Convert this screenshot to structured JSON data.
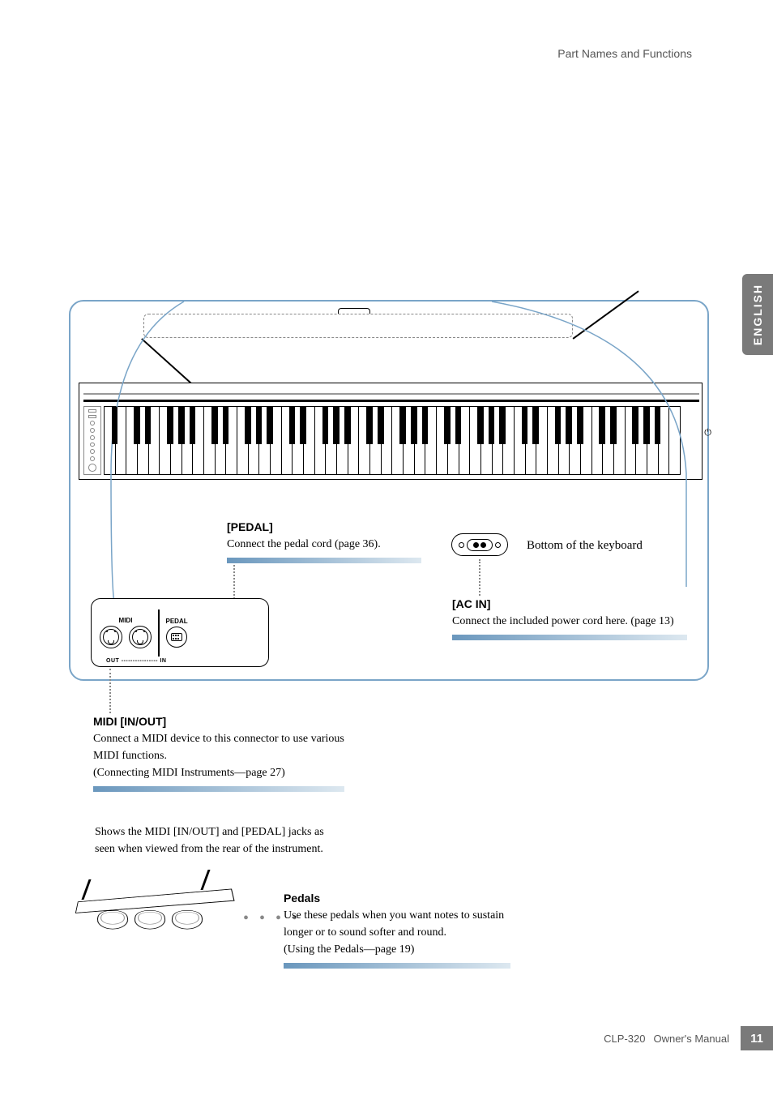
{
  "header": {
    "title": "Part Names and Functions"
  },
  "lang_tab": "ENGLISH",
  "callouts": {
    "pedal": {
      "title": "[PEDAL]",
      "text": "Connect the pedal cord (page 36)."
    },
    "ac_in": {
      "title": "[AC IN]",
      "text": "Connect the included power cord here. (page 13)"
    },
    "bottom_label": "Bottom of the keyboard",
    "midi": {
      "title": "MIDI [IN/OUT]",
      "line1": "Connect a MIDI device to this connector to use various MIDI functions.",
      "line2": "(Connecting MIDI Instruments—page 27)"
    },
    "jacks_note": "Shows the MIDI [IN/OUT] and [PEDAL] jacks as seen when viewed from the rear of the instrument.",
    "pedals": {
      "title": "Pedals",
      "line1": "Use these pedals when you want notes to sustain longer or to sound softer and round.",
      "line2": "(Using the Pedals—page 19)"
    }
  },
  "jacks": {
    "midi_label": "MIDI",
    "pedal_label": "PEDAL",
    "bottom": "OUT ---------------- IN"
  },
  "footer": {
    "model": "CLP-320",
    "manual": "Owner's Manual",
    "page": "11"
  },
  "colors": {
    "frame": "#7aa5c8",
    "tab": "#7a7a7a",
    "bar_from": "#6a97bd",
    "bar_to": "#dde8f0"
  }
}
